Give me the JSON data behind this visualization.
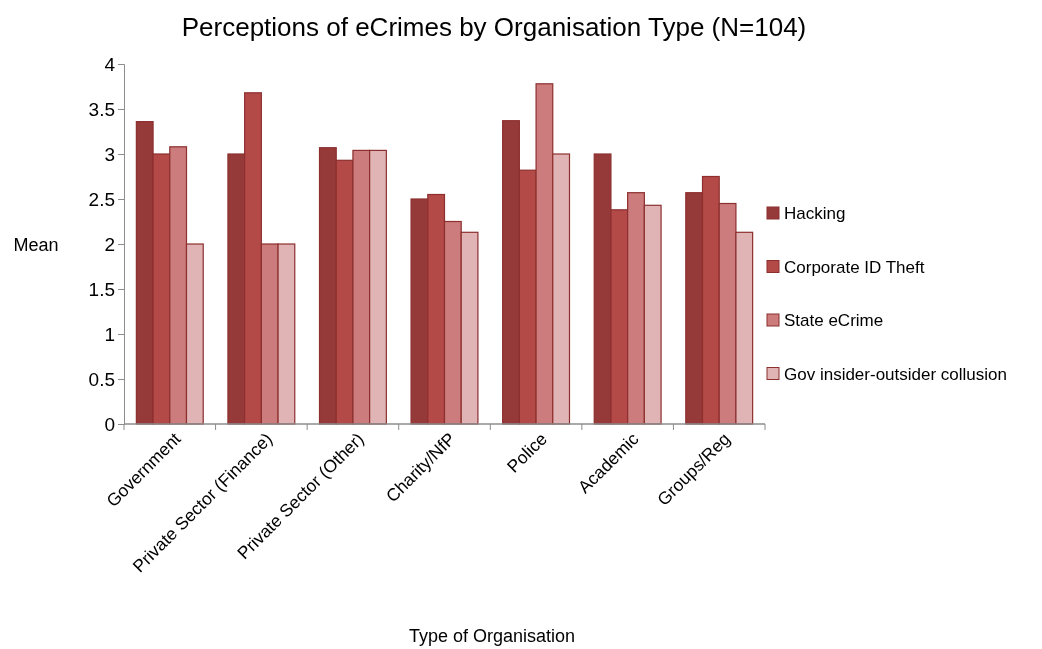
{
  "chart_data": {
    "type": "bar",
    "title": "Perceptions of eCrimes by Organisation Type (N=104)",
    "xlabel": "Type of Organisation",
    "ylabel": "Mean",
    "categories": [
      "Government",
      "Private Sector (Finance)",
      "Private Sector (Other)",
      "Charity/NfP",
      "Police",
      "Academic",
      "Groups/Reg"
    ],
    "series": [
      {
        "name": "Hacking",
        "color": "#963a39",
        "values": [
          3.36,
          3.0,
          3.07,
          2.5,
          3.37,
          3.0,
          2.57
        ]
      },
      {
        "name": "Corporate ID Theft",
        "color": "#b44a48",
        "values": [
          3.0,
          3.68,
          2.93,
          2.55,
          2.82,
          2.38,
          2.75
        ]
      },
      {
        "name": "State eCrime",
        "color": "#cc7c7c",
        "values": [
          3.08,
          2.0,
          3.04,
          2.25,
          3.78,
          2.57,
          2.45
        ]
      },
      {
        "name": "Gov insider-outsider collusion",
        "color": "#e0b4b5",
        "values": [
          2.0,
          2.0,
          3.04,
          2.13,
          3.0,
          2.43,
          2.13
        ]
      }
    ],
    "ylim": [
      0,
      4
    ],
    "yticks": [
      0,
      0.5,
      1,
      1.5,
      2,
      2.5,
      3,
      3.5,
      4
    ],
    "legend": "right"
  }
}
